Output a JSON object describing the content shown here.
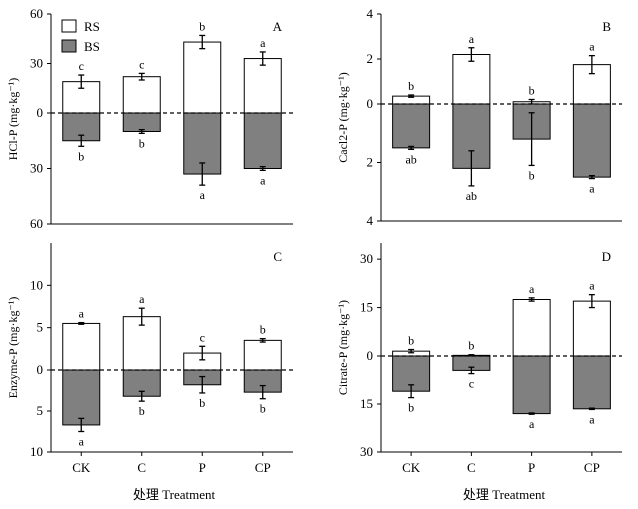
{
  "legend": {
    "rs_label": "RS",
    "bs_label": "BS",
    "rs_color": "#ffffff",
    "bs_color": "#808080"
  },
  "xaxis_title": "处理 Treatment",
  "categories": [
    "CK",
    "C",
    "P",
    "CP"
  ],
  "chart_data": [
    {
      "type": "bar",
      "panel": "A",
      "ylabel": "HCl-P (mg·kg⁻¹)",
      "ylim_top": 60,
      "ylim_bottom": 60,
      "top_ticks": [
        60,
        30
      ],
      "bottom_ticks": [
        30,
        60
      ],
      "categories": [
        "CK",
        "C",
        "P",
        "CP"
      ],
      "series": [
        {
          "name": "RS",
          "values": [
            19,
            22,
            43,
            33
          ],
          "errors": [
            4,
            2,
            4,
            4
          ],
          "letters": [
            "c",
            "c",
            "b",
            "a"
          ]
        },
        {
          "name": "BS",
          "values": [
            15,
            10,
            33,
            30
          ],
          "errors": [
            3,
            1,
            6,
            1
          ],
          "letters": [
            "b",
            "b",
            "a",
            "a"
          ]
        }
      ]
    },
    {
      "type": "bar",
      "panel": "B",
      "ylabel": "Cacl2-P (mg·kg⁻¹)",
      "ylim_top": 4,
      "ylim_bottom": 4,
      "top_ticks": [
        4,
        2
      ],
      "bottom_ticks": [
        2,
        4
      ],
      "categories": [
        "CK",
        "C",
        "P",
        "CP"
      ],
      "series": [
        {
          "name": "RS",
          "values": [
            0.35,
            2.2,
            0.1,
            1.75
          ],
          "errors": [
            0.05,
            0.3,
            0.1,
            0.4
          ],
          "letters": [
            "b",
            "a",
            "b",
            "a"
          ]
        },
        {
          "name": "BS",
          "values": [
            1.5,
            2.2,
            1.2,
            2.5
          ],
          "errors": [
            0.05,
            0.6,
            0.9,
            0.05
          ],
          "letters": [
            "ab",
            "ab",
            "b",
            "a"
          ]
        }
      ]
    },
    {
      "type": "bar",
      "panel": "C",
      "ylabel": "Enzyme-P (mg·kg⁻¹)",
      "ylim_top": 15,
      "ylim_bottom": 10,
      "top_ticks": [
        10,
        5
      ],
      "bottom_ticks": [
        5,
        10
      ],
      "categories": [
        "CK",
        "C",
        "P",
        "CP"
      ],
      "series": [
        {
          "name": "RS",
          "values": [
            5.5,
            6.3,
            2.0,
            3.5
          ],
          "errors": [
            0.1,
            1.0,
            0.8,
            0.2
          ],
          "letters": [
            "a",
            "a",
            "c",
            "b"
          ]
        },
        {
          "name": "BS",
          "values": [
            6.7,
            3.2,
            1.8,
            2.7
          ],
          "errors": [
            0.8,
            0.6,
            1.0,
            0.8
          ],
          "letters": [
            "a",
            "b",
            "b",
            "b"
          ]
        }
      ]
    },
    {
      "type": "bar",
      "panel": "D",
      "ylabel": "Citrate-P (mg·kg⁻¹)",
      "ylim_top": 35,
      "ylim_bottom": 30,
      "top_ticks": [
        30,
        15
      ],
      "bottom_ticks": [
        15,
        30
      ],
      "categories": [
        "CK",
        "C",
        "P",
        "CP"
      ],
      "series": [
        {
          "name": "RS",
          "values": [
            1.5,
            0.2,
            17.5,
            17.0
          ],
          "errors": [
            0.5,
            0.2,
            0.5,
            2.0
          ],
          "letters": [
            "b",
            "b",
            "a",
            "a"
          ]
        },
        {
          "name": "BS",
          "values": [
            11.0,
            4.5,
            18.0,
            16.5
          ],
          "errors": [
            2.0,
            1.0,
            0.2,
            0.2
          ],
          "letters": [
            "b",
            "c",
            "a",
            "a"
          ]
        }
      ]
    }
  ]
}
